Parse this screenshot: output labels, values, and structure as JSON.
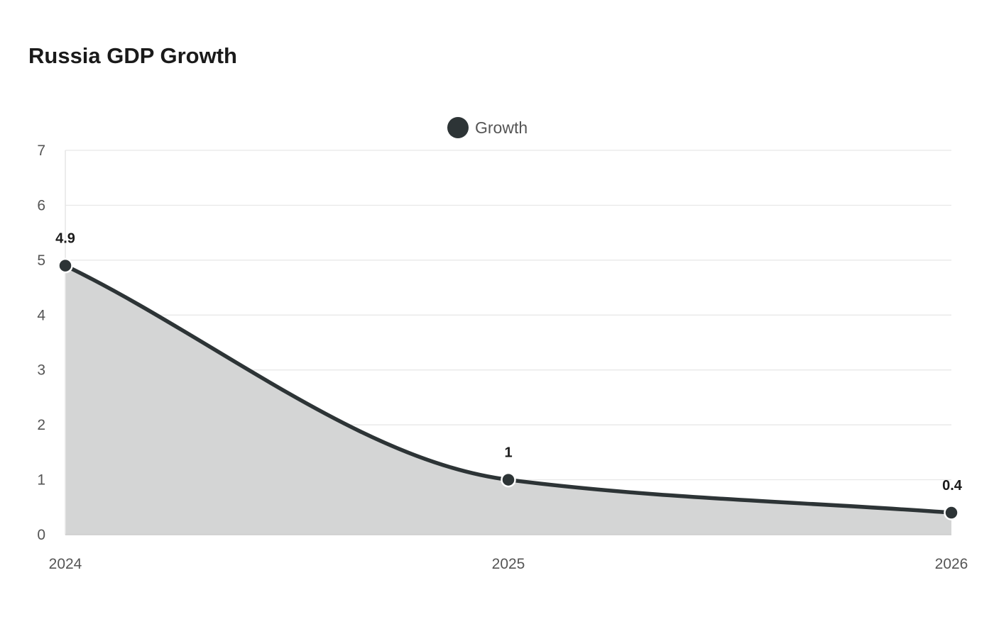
{
  "colors": {
    "series": "#2d3436",
    "area_fill": "#d4d5d5",
    "grid": "#e6e6e6",
    "axis": "#cccccc",
    "tick_text": "#555555",
    "title_text": "#1a1a1a"
  },
  "chart_data": {
    "type": "area",
    "title": "Russia GDP Growth",
    "xlabel": "",
    "ylabel": "",
    "categories": [
      "2024",
      "2025",
      "2026"
    ],
    "series": [
      {
        "name": "Growth",
        "values": [
          4.9,
          1,
          0.4
        ],
        "data_labels": [
          "4.9",
          "1",
          "0.4"
        ]
      }
    ],
    "ylim": [
      0,
      7
    ],
    "yticks": [
      "0",
      "1",
      "2",
      "3",
      "4",
      "5",
      "6",
      "7"
    ],
    "grid": true,
    "legend": "top-center",
    "smooth": true
  }
}
